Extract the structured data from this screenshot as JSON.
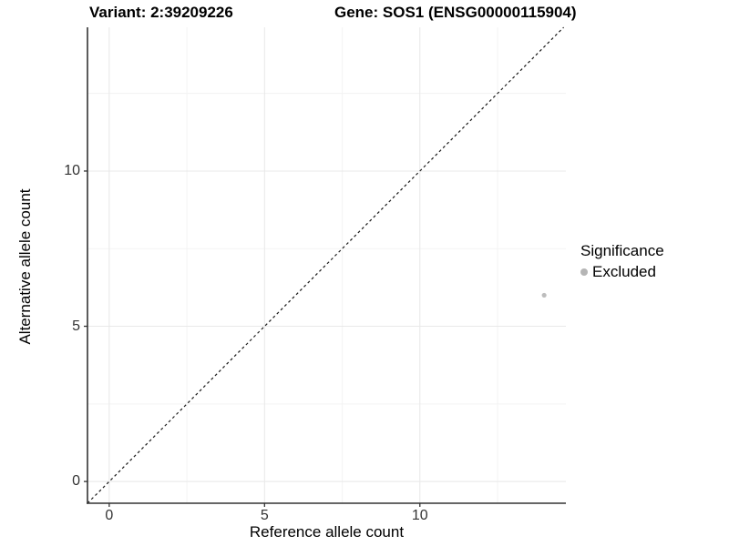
{
  "header": {
    "title_left": "Variant: 2:39209226",
    "title_right": "Gene: SOS1 (ENSG00000115904)"
  },
  "chart_data": {
    "type": "scatter",
    "title": "Variant: 2:39209226   Gene: SOS1 (ENSG00000115904)",
    "xlabel": "Reference allele count",
    "ylabel": "Alternative allele count",
    "xlim": [
      -0.7,
      14.7
    ],
    "ylim": [
      -0.7,
      14.63
    ],
    "x_ticks": [
      0,
      5,
      10
    ],
    "y_ticks": [
      0,
      5,
      10
    ],
    "x_minor_ticks": [
      2.5,
      7.5,
      12.5
    ],
    "y_minor_ticks": [
      2.5,
      7.5,
      12.5
    ],
    "grid": "on",
    "identity_line": {
      "slope": 1,
      "intercept": 0,
      "style": "dashed",
      "color": "#1a1a1a"
    },
    "series": [
      {
        "name": "Excluded",
        "color": "#bdbdbd",
        "points": [
          {
            "x": 14,
            "y": 6
          }
        ]
      }
    ],
    "legend": {
      "title": "Significance",
      "position": "right",
      "entries": [
        {
          "label": "Excluded",
          "color": "#b5b5b5"
        }
      ]
    },
    "colors": {
      "axis_line": "#333333",
      "grid_major": "#e8e8e8",
      "grid_minor": "#f3f3f3",
      "tick_label": "#333333"
    }
  }
}
